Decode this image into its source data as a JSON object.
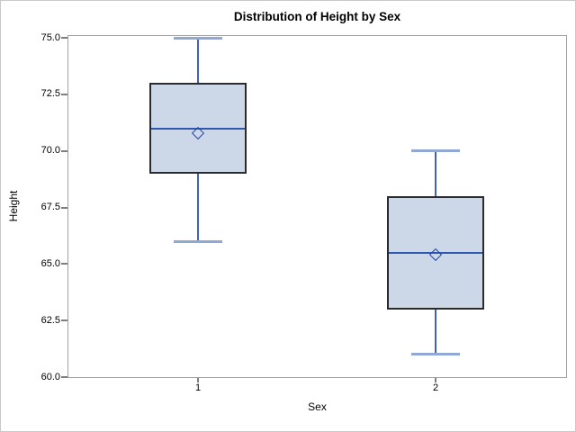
{
  "chart_data": {
    "type": "boxplot",
    "title": "Distribution of Height by Sex",
    "xlabel": "Sex",
    "ylabel": "Height",
    "y_axis": {
      "min": 60.0,
      "max": 75.0,
      "tick_labels": [
        "60.0",
        "62.5",
        "65.0",
        "67.5",
        "70.0",
        "72.5",
        "75.0"
      ],
      "tick_values": [
        60.0,
        62.5,
        65.0,
        67.5,
        70.0,
        72.5,
        75.0
      ]
    },
    "categories": [
      "1",
      "2"
    ],
    "groups": [
      {
        "category": "1",
        "whisker_low": 66.0,
        "q1": 69.0,
        "median": 71.0,
        "q3": 73.0,
        "whisker_high": 75.0,
        "mean": 70.75
      },
      {
        "category": "2",
        "whisker_low": 61.0,
        "q1": 63.0,
        "median": 65.5,
        "q3": 68.0,
        "whisker_high": 70.0,
        "mean": 65.4
      }
    ],
    "grid": false,
    "legend": "none",
    "colors": {
      "box_fill": "#ccd7e8",
      "box_border": "#2b2b2b",
      "median_line": "#2e58ad",
      "whisker_line": "#4162ae",
      "whisker_cap": "#90a8d4",
      "mean_marker": "#2547a5",
      "plot_frame": "#a1a1a1",
      "tick_mark": "#7e7e7e",
      "text": "#000000"
    }
  }
}
